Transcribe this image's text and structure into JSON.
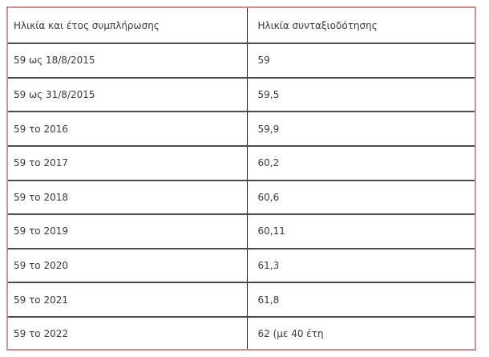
{
  "table": {
    "columns": [
      {
        "label": "Ηλικία και έτος συμπλήρωσης"
      },
      {
        "label": "Ηλικία συνταξιοδότησης"
      }
    ],
    "rows": [
      {
        "cells": [
          "59 ως 18/8/2015",
          "59"
        ]
      },
      {
        "cells": [
          "59 ως 31/8/2015",
          "59,5"
        ]
      },
      {
        "cells": [
          "59 το 2016",
          "59,9"
        ]
      },
      {
        "cells": [
          "59 το 2017",
          "60,2"
        ]
      },
      {
        "cells": [
          "59 το 2018",
          "60,6"
        ]
      },
      {
        "cells": [
          "59 το 2019",
          "60,11"
        ]
      },
      {
        "cells": [
          "59 το 2020",
          "61,3"
        ]
      },
      {
        "cells": [
          "59 το 2021",
          "61,8"
        ]
      },
      {
        "cells": [
          "59 το 2022",
          "62 (με 40 έτη"
        ]
      }
    ]
  },
  "chart_data": {
    "type": "table",
    "columns": [
      "Ηλικία και έτος συμπλήρωσης",
      "Ηλικία συνταξιοδότησης"
    ],
    "rows": [
      [
        "59 ως 18/8/2015",
        "59"
      ],
      [
        "59 ως 31/8/2015",
        "59,5"
      ],
      [
        "59 το 2016",
        "59,9"
      ],
      [
        "59 το 2017",
        "60,2"
      ],
      [
        "59 το 2018",
        "60,6"
      ],
      [
        "59 το 2019",
        "60,11"
      ],
      [
        "59 το 2020",
        "61,3"
      ],
      [
        "59 το 2021",
        "61,8"
      ],
      [
        "59 το 2022",
        "62 (με 40 έτη"
      ]
    ]
  },
  "colors": {
    "background": "#ffffff",
    "outer_border": "#c79292",
    "row_divider": "#4b4b4b",
    "column_divider": "#1c1c1c",
    "text": "#3a3a3a"
  }
}
